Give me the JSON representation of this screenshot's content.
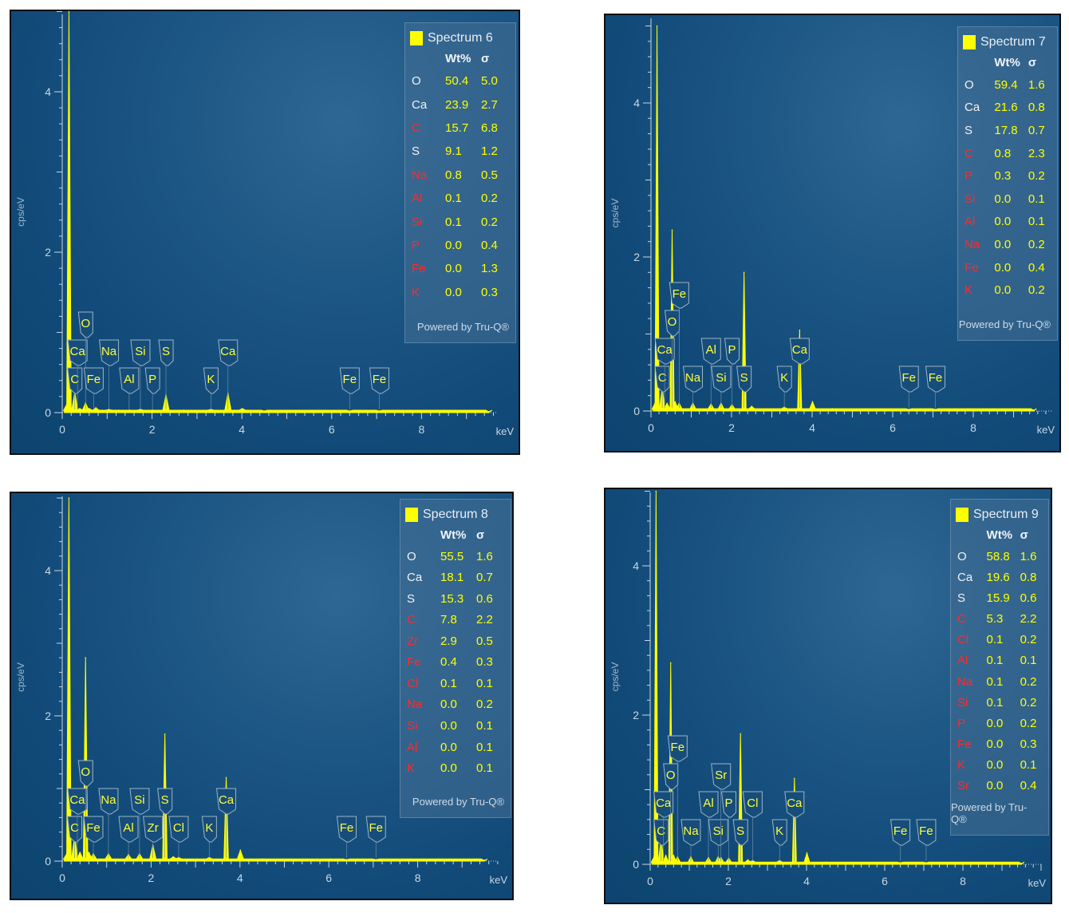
{
  "colors": {
    "spectrum": "#ffff00",
    "quantified": "#f2f2f2",
    "not_quantified": "#ff2a2a"
  },
  "chart_data": [
    {
      "type": "line",
      "title": "Spectrum 6",
      "xlabel": "keV",
      "ylabel": "cps/eV",
      "xlim": [
        0,
        10
      ],
      "ylim": [
        0,
        5
      ],
      "xticks": [
        "0",
        "2",
        "4",
        "6",
        "8"
      ],
      "yticks": [
        "0",
        "2",
        "4"
      ],
      "series": [
        {
          "name": "Spectrum 6",
          "x": [
            0.1,
            0.15,
            0.28,
            0.39,
            0.52,
            0.6,
            0.75,
            1.04,
            1.25,
            1.49,
            1.74,
            2.01,
            2.31,
            2.7,
            3.31,
            3.69,
            4.01,
            4.5,
            6.4,
            7.06,
            9.5
          ],
          "y": [
            0.1,
            5.0,
            0.25,
            0.05,
            0.12,
            0.05,
            0.06,
            0.04,
            0.03,
            0.03,
            0.04,
            0.03,
            0.22,
            0.03,
            0.04,
            0.24,
            0.05,
            0.02,
            0.02,
            0.02,
            0.01
          ]
        }
      ],
      "peak_labels": [
        {
          "label": "C",
          "keV": 0.28
        },
        {
          "label": "Ca",
          "keV": 0.34
        },
        {
          "label": "O",
          "keV": 0.52
        },
        {
          "label": "Fe",
          "keV": 0.7
        },
        {
          "label": "Na",
          "keV": 1.04
        },
        {
          "label": "Al",
          "keV": 1.49
        },
        {
          "label": "Si",
          "keV": 1.74
        },
        {
          "label": "P",
          "keV": 2.01
        },
        {
          "label": "S",
          "keV": 2.31
        },
        {
          "label": "K",
          "keV": 3.31
        },
        {
          "label": "Ca",
          "keV": 3.69
        },
        {
          "label": "Fe",
          "keV": 6.4
        },
        {
          "label": "Fe",
          "keV": 7.06
        }
      ],
      "legend": {
        "title": "Spectrum 6",
        "col_wt": "Wt%",
        "col_sigma": "σ",
        "footer": "Powered by Tru-Q®",
        "rows": [
          {
            "el": "O",
            "wt": "50.4",
            "sigma": "5.0",
            "quant": true
          },
          {
            "el": "Ca",
            "wt": "23.9",
            "sigma": "2.7",
            "quant": true
          },
          {
            "el": "C",
            "wt": "15.7",
            "sigma": "6.8",
            "quant": false
          },
          {
            "el": "S",
            "wt": "9.1",
            "sigma": "1.2",
            "quant": true
          },
          {
            "el": "Na",
            "wt": "0.8",
            "sigma": "0.5",
            "quant": false
          },
          {
            "el": "Al",
            "wt": "0.1",
            "sigma": "0.2",
            "quant": false
          },
          {
            "el": "Si",
            "wt": "0.1",
            "sigma": "0.2",
            "quant": false
          },
          {
            "el": "P",
            "wt": "0.0",
            "sigma": "0.4",
            "quant": false
          },
          {
            "el": "Fe",
            "wt": "0.0",
            "sigma": "1.3",
            "quant": false
          },
          {
            "el": "K",
            "wt": "0.0",
            "sigma": "0.3",
            "quant": false
          }
        ]
      }
    },
    {
      "type": "line",
      "title": "Spectrum 7",
      "xlabel": "keV",
      "ylabel": "cps/eV",
      "xlim": [
        0,
        10
      ],
      "ylim": [
        0,
        5
      ],
      "xticks": [
        "0",
        "2",
        "4",
        "6",
        "8"
      ],
      "yticks": [
        "0",
        "2",
        "4"
      ],
      "series": [
        {
          "name": "Spectrum 7",
          "x": [
            0.1,
            0.15,
            0.28,
            0.4,
            0.525,
            0.6,
            0.7,
            1.04,
            1.49,
            1.74,
            2.01,
            2.31,
            2.5,
            3.31,
            3.69,
            4.01,
            4.5,
            6.4,
            7.06,
            9.5
          ],
          "y": [
            0.1,
            5.0,
            0.3,
            0.1,
            2.35,
            0.12,
            0.1,
            0.1,
            0.09,
            0.1,
            0.08,
            1.8,
            0.06,
            0.05,
            1.05,
            0.12,
            0.03,
            0.02,
            0.02,
            0.01
          ]
        }
      ],
      "peak_labels": [
        {
          "label": "C",
          "keV": 0.28
        },
        {
          "label": "Ca",
          "keV": 0.34
        },
        {
          "label": "O",
          "keV": 0.525
        },
        {
          "label": "Fe",
          "keV": 0.7
        },
        {
          "label": "Na",
          "keV": 1.04
        },
        {
          "label": "Al",
          "keV": 1.49
        },
        {
          "label": "Si",
          "keV": 1.74
        },
        {
          "label": "P",
          "keV": 2.01
        },
        {
          "label": "S",
          "keV": 2.31
        },
        {
          "label": "K",
          "keV": 3.31
        },
        {
          "label": "Ca",
          "keV": 3.69
        },
        {
          "label": "Fe",
          "keV": 6.4
        },
        {
          "label": "Fe",
          "keV": 7.06
        }
      ],
      "legend": {
        "title": "Spectrum 7",
        "col_wt": "Wt%",
        "col_sigma": "σ",
        "footer": "Powered by Tru-Q®",
        "rows": [
          {
            "el": "O",
            "wt": "59.4",
            "sigma": "1.6",
            "quant": true
          },
          {
            "el": "Ca",
            "wt": "21.6",
            "sigma": "0.8",
            "quant": true
          },
          {
            "el": "S",
            "wt": "17.8",
            "sigma": "0.7",
            "quant": true
          },
          {
            "el": "C",
            "wt": "0.8",
            "sigma": "2.3",
            "quant": false
          },
          {
            "el": "P",
            "wt": "0.3",
            "sigma": "0.2",
            "quant": false
          },
          {
            "el": "Si",
            "wt": "0.0",
            "sigma": "0.1",
            "quant": false
          },
          {
            "el": "Al",
            "wt": "0.0",
            "sigma": "0.1",
            "quant": false
          },
          {
            "el": "Na",
            "wt": "0.0",
            "sigma": "0.2",
            "quant": false
          },
          {
            "el": "Fe",
            "wt": "0.0",
            "sigma": "0.4",
            "quant": false
          },
          {
            "el": "K",
            "wt": "0.0",
            "sigma": "0.2",
            "quant": false
          }
        ]
      }
    },
    {
      "type": "line",
      "title": "Spectrum 8",
      "xlabel": "keV",
      "ylabel": "cps/eV",
      "xlim": [
        0,
        10
      ],
      "ylim": [
        0,
        5
      ],
      "xticks": [
        "0",
        "2",
        "4",
        "6",
        "8"
      ],
      "yticks": [
        "0",
        "2",
        "4"
      ],
      "series": [
        {
          "name": "Spectrum 8",
          "x": [
            0.1,
            0.15,
            0.28,
            0.4,
            0.525,
            0.6,
            0.7,
            1.04,
            1.49,
            1.74,
            2.04,
            2.31,
            2.5,
            2.62,
            3.31,
            3.69,
            4.01,
            4.5,
            6.4,
            7.06,
            9.5
          ],
          "y": [
            0.1,
            5.0,
            0.35,
            0.12,
            2.8,
            0.12,
            0.1,
            0.1,
            0.09,
            0.1,
            0.22,
            1.75,
            0.06,
            0.05,
            0.05,
            1.15,
            0.15,
            0.03,
            0.02,
            0.02,
            0.01
          ]
        }
      ],
      "peak_labels": [
        {
          "label": "C",
          "keV": 0.28
        },
        {
          "label": "Ca",
          "keV": 0.34
        },
        {
          "label": "O",
          "keV": 0.525
        },
        {
          "label": "Fe",
          "keV": 0.7
        },
        {
          "label": "Na",
          "keV": 1.04
        },
        {
          "label": "Al",
          "keV": 1.49
        },
        {
          "label": "Si",
          "keV": 1.74
        },
        {
          "label": "Zr",
          "keV": 2.04
        },
        {
          "label": "S",
          "keV": 2.31
        },
        {
          "label": "Cl",
          "keV": 2.62
        },
        {
          "label": "K",
          "keV": 3.31
        },
        {
          "label": "Ca",
          "keV": 3.69
        },
        {
          "label": "Fe",
          "keV": 6.4
        },
        {
          "label": "Fe",
          "keV": 7.06
        }
      ],
      "legend": {
        "title": "Spectrum 8",
        "col_wt": "Wt%",
        "col_sigma": "σ",
        "footer": "Powered by Tru-Q®",
        "rows": [
          {
            "el": "O",
            "wt": "55.5",
            "sigma": "1.6",
            "quant": true
          },
          {
            "el": "Ca",
            "wt": "18.1",
            "sigma": "0.7",
            "quant": true
          },
          {
            "el": "S",
            "wt": "15.3",
            "sigma": "0.6",
            "quant": true
          },
          {
            "el": "C",
            "wt": "7.8",
            "sigma": "2.2",
            "quant": false
          },
          {
            "el": "Zr",
            "wt": "2.9",
            "sigma": "0.5",
            "quant": false
          },
          {
            "el": "Fe",
            "wt": "0.4",
            "sigma": "0.3",
            "quant": false
          },
          {
            "el": "Cl",
            "wt": "0.1",
            "sigma": "0.1",
            "quant": false
          },
          {
            "el": "Na",
            "wt": "0.0",
            "sigma": "0.2",
            "quant": false
          },
          {
            "el": "Si",
            "wt": "0.0",
            "sigma": "0.1",
            "quant": false
          },
          {
            "el": "Al",
            "wt": "0.0",
            "sigma": "0.1",
            "quant": false
          },
          {
            "el": "K",
            "wt": "0.0",
            "sigma": "0.1",
            "quant": false
          }
        ]
      }
    },
    {
      "type": "line",
      "title": "Spectrum 9",
      "xlabel": "keV",
      "ylabel": "cps/eV",
      "xlim": [
        0,
        10
      ],
      "ylim": [
        0,
        5
      ],
      "xticks": [
        "0",
        "2",
        "4",
        "6",
        "8"
      ],
      "yticks": [
        "0",
        "2",
        "4"
      ],
      "series": [
        {
          "name": "Spectrum 9",
          "x": [
            0.1,
            0.15,
            0.28,
            0.4,
            0.525,
            0.6,
            0.7,
            1.04,
            1.49,
            1.74,
            1.81,
            2.01,
            2.31,
            2.5,
            2.62,
            3.31,
            3.69,
            4.01,
            4.5,
            6.4,
            7.06,
            9.5
          ],
          "y": [
            0.1,
            5.0,
            0.35,
            0.12,
            2.7,
            0.12,
            0.1,
            0.1,
            0.09,
            0.1,
            0.09,
            0.08,
            1.75,
            0.06,
            0.05,
            0.05,
            1.15,
            0.15,
            0.03,
            0.02,
            0.02,
            0.01
          ]
        }
      ],
      "peak_labels": [
        {
          "label": "C",
          "keV": 0.28
        },
        {
          "label": "Ca",
          "keV": 0.34
        },
        {
          "label": "O",
          "keV": 0.525
        },
        {
          "label": "Fe",
          "keV": 0.7
        },
        {
          "label": "Na",
          "keV": 1.04
        },
        {
          "label": "Al",
          "keV": 1.49
        },
        {
          "label": "Si",
          "keV": 1.74
        },
        {
          "label": "Sr",
          "keV": 1.81
        },
        {
          "label": "P",
          "keV": 2.01
        },
        {
          "label": "S",
          "keV": 2.31
        },
        {
          "label": "Cl",
          "keV": 2.62
        },
        {
          "label": "K",
          "keV": 3.31
        },
        {
          "label": "Ca",
          "keV": 3.69
        },
        {
          "label": "Fe",
          "keV": 6.4
        },
        {
          "label": "Fe",
          "keV": 7.06
        }
      ],
      "legend": {
        "title": "Spectrum 9",
        "col_wt": "Wt%",
        "col_sigma": "σ",
        "footer": "Powered by Tru-Q®",
        "rows": [
          {
            "el": "O",
            "wt": "58.8",
            "sigma": "1.6",
            "quant": true
          },
          {
            "el": "Ca",
            "wt": "19.6",
            "sigma": "0.8",
            "quant": true
          },
          {
            "el": "S",
            "wt": "15.9",
            "sigma": "0.6",
            "quant": true
          },
          {
            "el": "C",
            "wt": "5.3",
            "sigma": "2.2",
            "quant": false
          },
          {
            "el": "Cl",
            "wt": "0.1",
            "sigma": "0.2",
            "quant": false
          },
          {
            "el": "Al",
            "wt": "0.1",
            "sigma": "0.1",
            "quant": false
          },
          {
            "el": "Na",
            "wt": "0.1",
            "sigma": "0.2",
            "quant": false
          },
          {
            "el": "Si",
            "wt": "0.1",
            "sigma": "0.2",
            "quant": false
          },
          {
            "el": "P",
            "wt": "0.0",
            "sigma": "0.2",
            "quant": false
          },
          {
            "el": "Fe",
            "wt": "0.0",
            "sigma": "0.3",
            "quant": false
          },
          {
            "el": "K",
            "wt": "0.0",
            "sigma": "0.1",
            "quant": false
          },
          {
            "el": "Sr",
            "wt": "0.0",
            "sigma": "0.4",
            "quant": false
          }
        ]
      }
    }
  ]
}
